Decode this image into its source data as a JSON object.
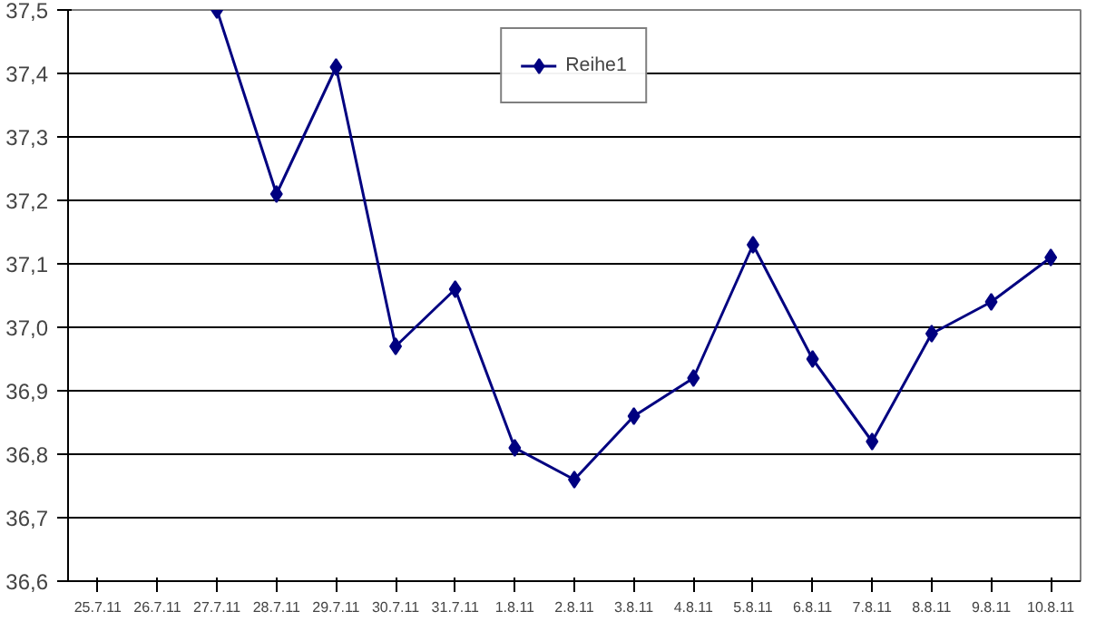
{
  "chart_data": {
    "type": "line",
    "categories": [
      "25.7.11",
      "26.7.11",
      "27.7.11",
      "28.7.11",
      "29.7.11",
      "30.7.11",
      "31.7.11",
      "1.8.11",
      "2.8.11",
      "3.8.11",
      "4.8.11",
      "5.8.11",
      "6.8.11",
      "7.8.11",
      "8.8.11",
      "9.8.11",
      "10.8.11"
    ],
    "series": [
      {
        "name": "Reihe1",
        "color": "#000080",
        "values": [
          null,
          null,
          37.5,
          37.21,
          37.41,
          36.97,
          37.06,
          36.81,
          36.76,
          36.86,
          36.92,
          37.13,
          36.95,
          36.82,
          36.99,
          37.04,
          37.11
        ]
      }
    ],
    "ylim": [
      36.6,
      37.5
    ],
    "yticks": [
      {
        "value": 36.6,
        "label": "36,6"
      },
      {
        "value": 36.7,
        "label": "36,7"
      },
      {
        "value": 36.8,
        "label": "36,8"
      },
      {
        "value": 36.9,
        "label": "36,9"
      },
      {
        "value": 37.0,
        "label": "37,0"
      },
      {
        "value": 37.1,
        "label": "37,1"
      },
      {
        "value": 37.2,
        "label": "37,2"
      },
      {
        "value": 37.3,
        "label": "37,3"
      },
      {
        "value": 37.4,
        "label": "37,4"
      },
      {
        "value": 37.5,
        "label": "37,5"
      }
    ],
    "grid": "y",
    "legend": "top",
    "marker": "diamond",
    "line_style": "solid"
  }
}
